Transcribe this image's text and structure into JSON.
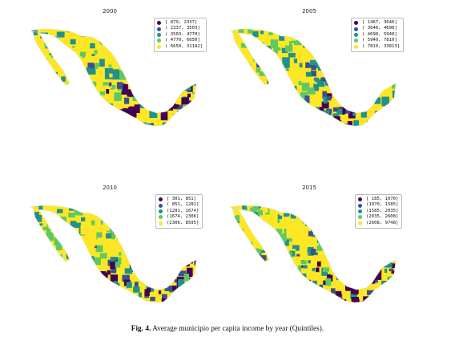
{
  "colors": [
    "#440154",
    "#3b528b",
    "#21918c",
    "#5ec962",
    "#fde725"
  ],
  "panels": [
    {
      "title": "2000",
      "legend": [
        "[ 879,  2337]",
        "( 2337,  3503]",
        "( 3503,  4770]",
        "( 4770,  6650]",
        "( 6650, 31182]"
      ]
    },
    {
      "title": "2005",
      "legend": [
        "[ 1467,  3646]",
        "( 3646,  4690]",
        "( 4690,  5940]",
        "( 5940,  7810]",
        "( 7810, 33813]"
      ]
    },
    {
      "title": "2010",
      "legend": [
        "[ 301,  851]",
        "( 851, 1281]",
        "(1281, 1674]",
        "(1674, 2306]",
        "(2306, 8595]"
      ]
    },
    {
      "title": "2015",
      "legend": [
        "[ 185, 1070]",
        "(1070, 1585]",
        "(1585, 2035]",
        "(2035, 2608]",
        "(2608, 9748]"
      ]
    }
  ],
  "caption": {
    "label": "Fig. 4.",
    "text": "Average municipio per capita income by year (Quintiles)."
  }
}
